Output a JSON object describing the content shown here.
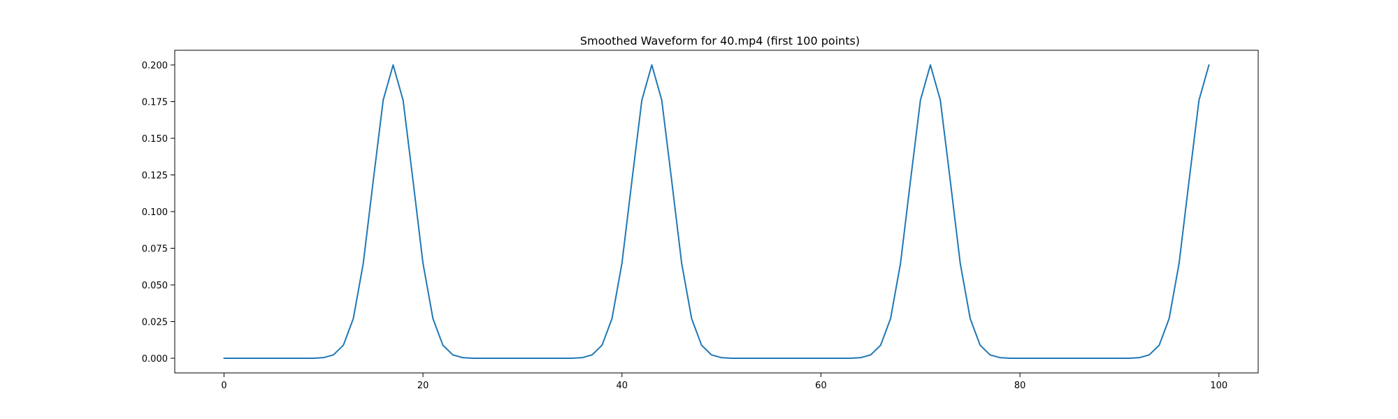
{
  "chart_data": {
    "type": "line",
    "title": "Smoothed Waveform for 40.mp4 (first 100 points)",
    "xlabel": "",
    "ylabel": "",
    "xlim": [
      -4.95,
      103.95
    ],
    "ylim": [
      -0.01,
      0.21
    ],
    "xticks": [
      0,
      20,
      40,
      60,
      80,
      100
    ],
    "yticks": [
      0.0,
      0.025,
      0.05,
      0.075,
      0.1,
      0.125,
      0.15,
      0.175,
      0.2
    ],
    "xtick_labels": [
      "0",
      "20",
      "40",
      "60",
      "80",
      "100"
    ],
    "ytick_labels": [
      "0.000",
      "0.025",
      "0.050",
      "0.075",
      "0.100",
      "0.125",
      "0.150",
      "0.175",
      "0.200"
    ],
    "grid": false,
    "legend": "none",
    "series": [
      {
        "color": "#1f77b4",
        "x": [
          0,
          1,
          2,
          3,
          4,
          5,
          6,
          7,
          8,
          9,
          10,
          11,
          12,
          13,
          14,
          15,
          16,
          17,
          18,
          19,
          20,
          21,
          22,
          23,
          24,
          25,
          26,
          27,
          28,
          29,
          30,
          31,
          32,
          33,
          34,
          35,
          36,
          37,
          38,
          39,
          40,
          41,
          42,
          43,
          44,
          45,
          46,
          47,
          48,
          49,
          50,
          51,
          52,
          53,
          54,
          55,
          56,
          57,
          58,
          59,
          60,
          61,
          62,
          63,
          64,
          65,
          66,
          67,
          68,
          69,
          70,
          71,
          72,
          73,
          74,
          75,
          76,
          77,
          78,
          79,
          80,
          81,
          82,
          83,
          84,
          85,
          86,
          87,
          88,
          89,
          90,
          91,
          92,
          93,
          94,
          95,
          96,
          97,
          98,
          99
        ],
        "y": [
          0,
          0,
          0,
          0,
          0,
          0,
          0,
          0,
          0,
          0,
          0.0004,
          0.0023,
          0.0089,
          0.0271,
          0.0648,
          0.121,
          0.176,
          0.2,
          0.176,
          0.121,
          0.0648,
          0.0271,
          0.0089,
          0.0023,
          0.0004,
          0,
          0,
          0,
          0,
          0,
          0,
          0,
          0,
          0,
          0,
          0,
          0.0004,
          0.0023,
          0.0089,
          0.0271,
          0.0648,
          0.121,
          0.176,
          0.2,
          0.176,
          0.121,
          0.0648,
          0.0271,
          0.0089,
          0.0023,
          0.0004,
          0,
          0,
          0,
          0,
          0,
          0,
          0,
          0,
          0,
          0,
          0,
          0,
          0,
          0.0004,
          0.0023,
          0.0089,
          0.0271,
          0.0648,
          0.121,
          0.176,
          0.2,
          0.176,
          0.121,
          0.0648,
          0.0271,
          0.0089,
          0.0023,
          0.0004,
          0,
          0,
          0,
          0,
          0,
          0,
          0,
          0,
          0,
          0,
          0,
          0,
          0,
          0.0004,
          0.0023,
          0.0089,
          0.0271,
          0.0648,
          0.121,
          0.176,
          0.2
        ]
      }
    ]
  }
}
